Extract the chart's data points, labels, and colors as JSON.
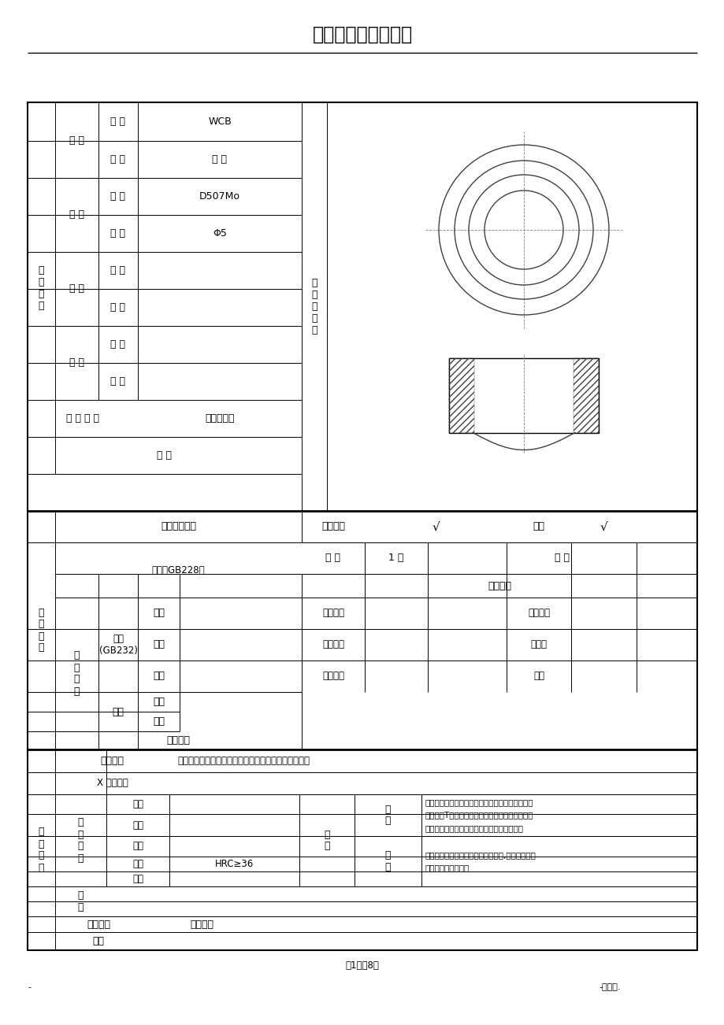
{
  "title": "焊接工艺评定任务书",
  "page_num": "第1页八8页",
  "footer_left": "-",
  "footer_right": "-可修编.",
  "wcb": "WCB",
  "valve": "阀 体",
  "d507mo": "D507Mo",
  "phi5": "Φ5",
  "weld_method_label": "焊 接 方 法",
  "weld_method_val": "焊条电弧焊",
  "qita": "其 它",
  "jiemuzhi": "接头示意图",
  "hanjiecailiao": "焊接材料",
  "mucai": "母 材",
  "hantiao": "焊 条",
  "hansi": "焊 丝",
  "hanjie": "焊 剂",
  "paihaonumber": "牌 号",
  "guige": "规 格",
  "hanjifenwaiguanzhiliang": "焊缝外观质量",
  "shexianyintanshang": "射线探伤",
  "qita2": "其它",
  "shuliang": "数 量",
  "yijian": "1 件",
  "chongji": "冲 击",
  "gexiangzhib": "各项指标",
  "lashen": "拉伸（GB228）",
  "jixiexineng": "机\n械\n性\n能",
  "wanqu": "弯曲\n(GB232)",
  "mianbending": "面弯",
  "beibending": "背弯",
  "cebending": "侧弯",
  "jixiang": "金相",
  "hongguan": "宏观",
  "weiguan": "微观",
  "wanquzhijing": "弯曲直径",
  "zhizuojianjv": "支座间距",
  "wanqujiaozu": "弯曲角度",
  "yingxiangqu": "热影响区",
  "hanjiquq": "焊缝区",
  "qita3": "其它",
  "jianfuhuoshi": "晶间腐蚀",
  "jishuqiu": "技\n术\n要\n求",
  "hege": "合\n格\n标\n准",
  "wguan_label": "外观质量",
  "wguan_val": "不允许存在未燔合、裂缝、气孔、夹渣、弧坑、未焊透",
  "xshe_label": "X 射线伤探",
  "lashen2": "拉伸",
  "wanqu2": "弯曲",
  "chongji2": "冲击",
  "yingdu": "硬度",
  "qita4": "其它",
  "yingdu_val": "HRC≥36",
  "jixiang2": "金\n相",
  "jianfuhuoshi2": "晶间腐蚀",
  "bianzhi": "编制",
  "hejixineng": "机\n械\n性\n能",
  "hejin": "合\n金",
  "hongguan2": "宏\n观",
  "weiguan2": "微\n观",
  "macro_text": "对接焊缝不疏松、未燔合和未焊透、热影响区和焊\n缝无裂纹T型接头和管子管板角焊缝，焊缝根部不\n允许有未燔合，焊缝和热影响区不允许有裂纹",
  "micro_text": "不允许有过烧组织和淡硬性马氏组织,焊缝和热影响\n区不允许有显微裂纹"
}
